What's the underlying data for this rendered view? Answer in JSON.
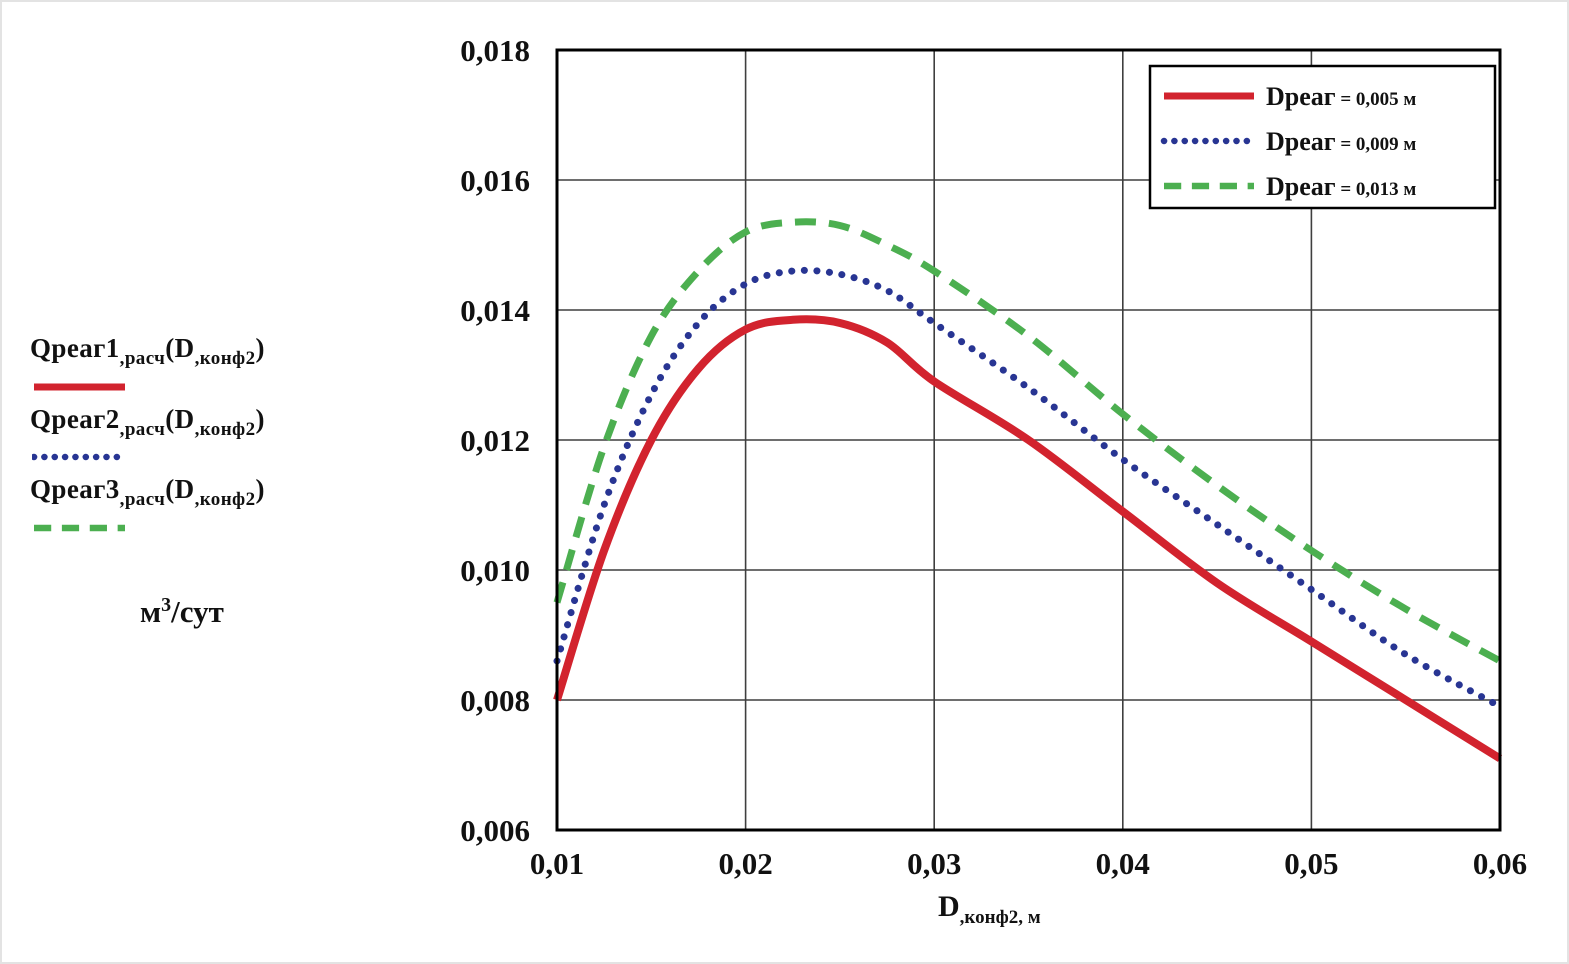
{
  "figure": {
    "background": "#ffffff"
  },
  "left_panel": {
    "labels": [
      {
        "segments": [
          {
            "t": "Qреаг1"
          },
          {
            "t": ",расч",
            "sub": true
          },
          {
            "t": "(D"
          },
          {
            "t": ",конф2",
            "sub": true
          },
          {
            "t": ")"
          }
        ]
      },
      {
        "segments": [
          {
            "t": "Qреаг2"
          },
          {
            "t": ",расч",
            "sub": true
          },
          {
            "t": "(D"
          },
          {
            "t": ",конф2",
            "sub": true
          },
          {
            "t": ")"
          }
        ]
      },
      {
        "segments": [
          {
            "t": "Qреаг3"
          },
          {
            "t": ",расч",
            "sub": true
          },
          {
            "t": "(D"
          },
          {
            "t": ",конф2",
            "sub": true
          },
          {
            "t": ")"
          }
        ]
      }
    ],
    "unit": {
      "segments": [
        {
          "t": "м"
        },
        {
          "t": "3",
          "sup": true
        },
        {
          "t": "/сут"
        }
      ]
    }
  },
  "chart_data": {
    "type": "line",
    "title": "",
    "xlabel_segments": [
      {
        "t": "D"
      },
      {
        "t": ",конф2, м",
        "sub": true
      }
    ],
    "ylabel": "м3/сут",
    "xlim": [
      0.01,
      0.06
    ],
    "ylim": [
      0.006,
      0.018
    ],
    "grid": true,
    "grid_color": "#3f3f3f",
    "x_ticks": {
      "values": [
        0.01,
        0.02,
        0.03,
        0.04,
        0.05,
        0.06
      ],
      "labels": [
        "0,01",
        "0,02",
        "0,03",
        "0,04",
        "0,05",
        "0,06"
      ]
    },
    "y_ticks": {
      "values": [
        0.006,
        0.008,
        0.01,
        0.012,
        0.014,
        0.016,
        0.018
      ],
      "labels": [
        "0,006",
        "0,008",
        "0,010",
        "0,012",
        "0,014",
        "0,016",
        "0,018"
      ]
    },
    "legend": {
      "position": "top-right"
    },
    "x": [
      0.01,
      0.0125,
      0.015,
      0.0175,
      0.02,
      0.0225,
      0.025,
      0.0275,
      0.03,
      0.035,
      0.04,
      0.045,
      0.05,
      0.055,
      0.06
    ],
    "series": [
      {
        "name": "Qреаг1,расч(D,конф2)",
        "legend_name": "Dреаг",
        "legend_value": "= 0,005 м",
        "color": "#d2232e",
        "style": "solid",
        "y": [
          0.008,
          0.0103,
          0.012,
          0.0131,
          0.0137,
          0.01385,
          0.0138,
          0.0135,
          0.0129,
          0.012,
          0.0109,
          0.0098,
          0.0089,
          0.008,
          0.0071
        ]
      },
      {
        "name": "Qреаг2,расч(D,конф2)",
        "legend_name": "Dреаг",
        "legend_value": "= 0,009 м",
        "color": "#283593",
        "style": "dotted",
        "y": [
          0.0086,
          0.011,
          0.0127,
          0.0138,
          0.0144,
          0.0146,
          0.01455,
          0.0143,
          0.0138,
          0.0128,
          0.0117,
          0.0107,
          0.0097,
          0.0087,
          0.0079
        ]
      },
      {
        "name": "Qреаг3,расч(D,конф2)",
        "legend_name": "Dреаг",
        "legend_value": "= 0,013 м",
        "color": "#4caf50",
        "style": "dashed",
        "y": [
          0.0095,
          0.0119,
          0.0136,
          0.0146,
          0.0152,
          0.01535,
          0.0153,
          0.015,
          0.0146,
          0.0136,
          0.0124,
          0.0113,
          0.0103,
          0.0094,
          0.0086
        ]
      }
    ]
  },
  "colors": {
    "axis_border": "#000000",
    "text": "#111111",
    "legend_border": "#000000",
    "legend_bg": "#ffffff"
  }
}
